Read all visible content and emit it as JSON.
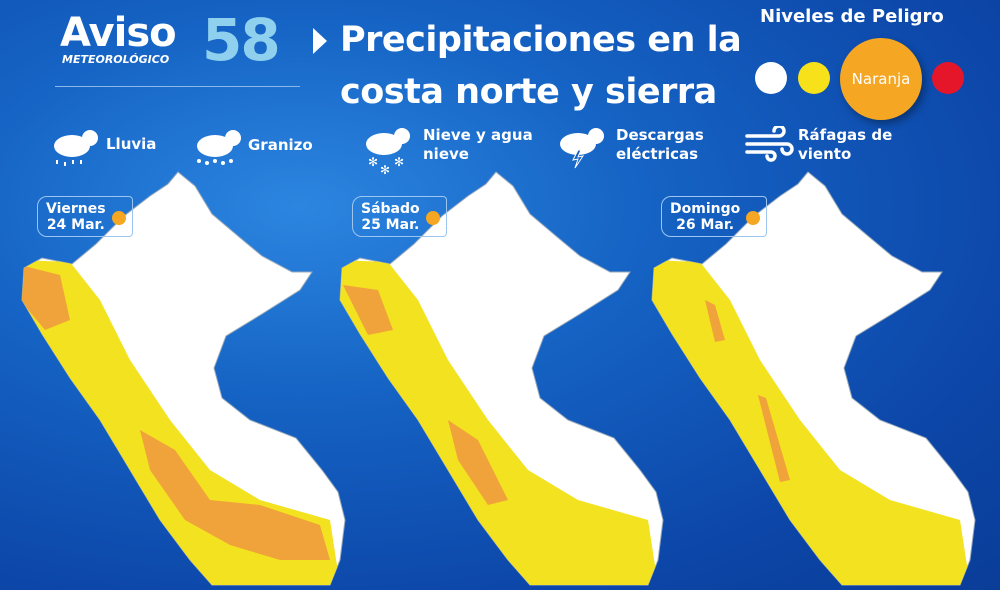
{
  "header": {
    "aviso": "Aviso",
    "meteorologico": "METEOROLÓGICO",
    "number": "58",
    "title_line1": "Precipitaciones en la",
    "title_line2": "costa norte y sierra"
  },
  "niveles": {
    "title": "Niveles de Peligro",
    "levels": [
      {
        "color": "#ffffff"
      },
      {
        "color": "#f7e11b"
      },
      {
        "color": "#f5a623",
        "label": "Naranja",
        "active": true
      },
      {
        "color": "#e5162a"
      }
    ]
  },
  "legend": [
    {
      "icon": "rain-cloud-icon",
      "label": "Lluvia"
    },
    {
      "icon": "hail-cloud-icon",
      "label": "Granizo"
    },
    {
      "icon": "snow-cloud-icon",
      "label": "Nieve y agua nieve"
    },
    {
      "icon": "storm-cloud-icon",
      "label": "Descargas eléctricas"
    },
    {
      "icon": "wind-icon",
      "label": "Ráfagas de viento"
    }
  ],
  "days": [
    {
      "day": "Viernes",
      "date": "24 Mar."
    },
    {
      "day": "Sábado",
      "date": "25 Mar."
    },
    {
      "day": "Domingo",
      "date": "26 Mar."
    }
  ],
  "colors": {
    "yellow": "#f3e21f",
    "orange": "#f0a33a",
    "background": "#1563c4"
  }
}
